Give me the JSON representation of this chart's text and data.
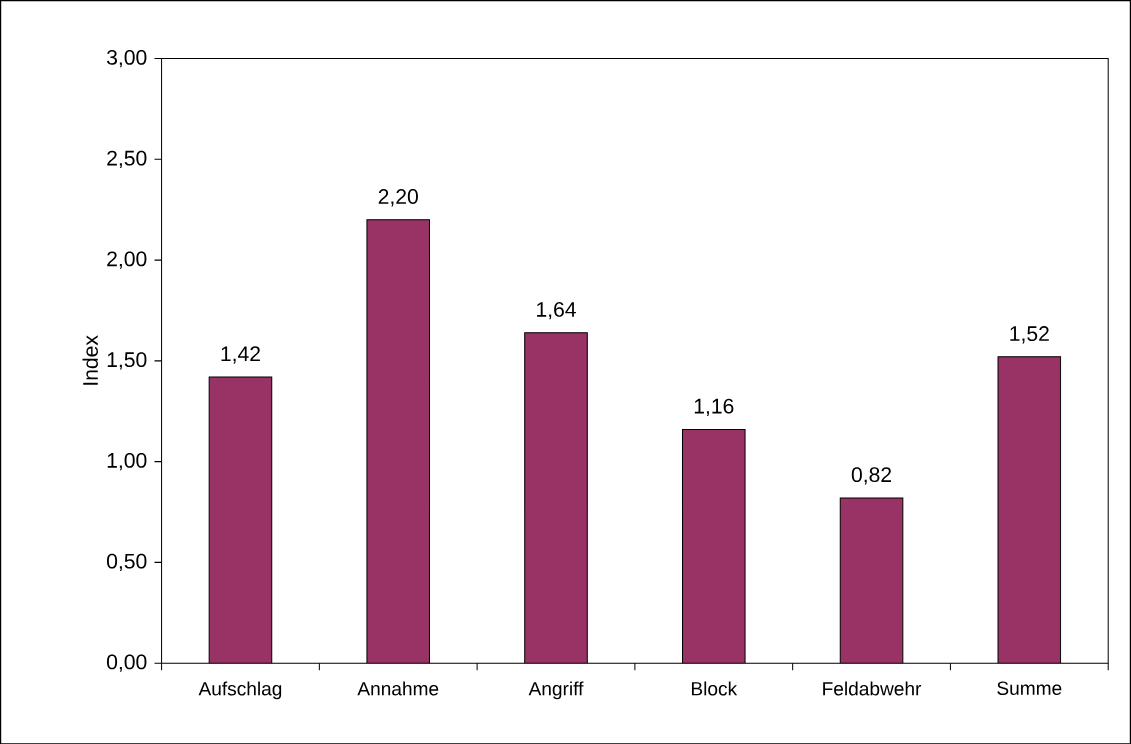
{
  "chart_data": {
    "type": "bar",
    "ylabel": "Index",
    "categories": [
      "Aufschlag",
      "Annahme",
      "Angriff",
      "Block",
      "Feldabwehr",
      "Summe"
    ],
    "values": [
      1.42,
      2.2,
      1.64,
      1.16,
      0.82,
      1.52
    ],
    "value_labels": [
      "1,42",
      "2,20",
      "1,64",
      "1,16",
      "0,82",
      "1,52"
    ],
    "ylim": [
      0,
      3
    ],
    "yticks": [
      {
        "value": 0,
        "label": "0,00"
      },
      {
        "value": 0.5,
        "label": "0,50"
      },
      {
        "value": 1,
        "label": "1,00"
      },
      {
        "value": 1.5,
        "label": "1,50"
      },
      {
        "value": 2,
        "label": "2,00"
      },
      {
        "value": 2.5,
        "label": "2,50"
      },
      {
        "value": 3,
        "label": "3,00"
      }
    ],
    "color": "#993366"
  }
}
